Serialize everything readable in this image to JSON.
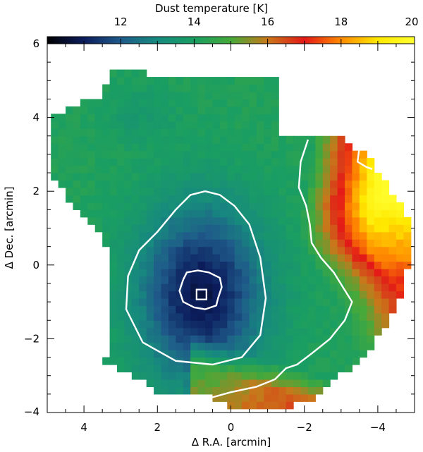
{
  "chart_data": {
    "type": "heatmap",
    "title": "",
    "colorbar": {
      "label": "Dust temperature [K]",
      "range": [
        10,
        20
      ],
      "ticks": [
        12,
        14,
        16,
        18,
        20
      ],
      "colormap": [
        "#000000",
        "#0c1d5c",
        "#1f5a8a",
        "#178a7e",
        "#1a9e62",
        "#46a93a",
        "#c8781a",
        "#e31818",
        "#ff8a00",
        "#ffe800",
        "#ffff30"
      ]
    },
    "xaxis": {
      "label": "Δ R.A. [arcmin]",
      "range": [
        5,
        -5
      ],
      "ticks": [
        4,
        2,
        0,
        -2,
        -4
      ],
      "tick_labels": [
        "4",
        "2",
        "0",
        "−2",
        "−4"
      ]
    },
    "yaxis": {
      "label": "Δ Dec. [arcmin]",
      "range": [
        -4,
        6
      ],
      "ticks": [
        -4,
        -2,
        0,
        2,
        4,
        6
      ],
      "tick_labels": [
        "−4",
        "−2",
        "0",
        "2",
        "4",
        "6"
      ]
    },
    "map": {
      "core_position": [
        0.8,
        -0.8
      ],
      "core_min_temperature": 10.8,
      "ridge_temperature": 14.2,
      "east_rim_temperature": 19.8,
      "south_rim_temperature": 16.5
    },
    "contours": [
      {
        "level": "inner",
        "points": [
          [
            1.3,
            -0.4
          ],
          [
            1.2,
            -0.2
          ],
          [
            0.9,
            -0.15
          ],
          [
            0.6,
            -0.2
          ],
          [
            0.3,
            -0.35
          ],
          [
            0.25,
            -0.6
          ],
          [
            0.35,
            -0.9
          ],
          [
            0.4,
            -1.1
          ],
          [
            0.7,
            -1.2
          ],
          [
            1.0,
            -1.15
          ],
          [
            1.3,
            -1.0
          ],
          [
            1.4,
            -0.7
          ],
          [
            1.3,
            -0.4
          ]
        ]
      },
      {
        "level": "middle",
        "points": [
          [
            0.7,
            2.0
          ],
          [
            0.3,
            1.9
          ],
          [
            -0.1,
            1.6
          ],
          [
            -0.5,
            1.1
          ],
          [
            -0.8,
            0.2
          ],
          [
            -0.95,
            -0.9
          ],
          [
            -0.8,
            -1.9
          ],
          [
            -0.3,
            -2.5
          ],
          [
            0.5,
            -2.7
          ],
          [
            1.5,
            -2.6
          ],
          [
            2.4,
            -2.1
          ],
          [
            2.85,
            -1.2
          ],
          [
            2.8,
            -0.3
          ],
          [
            2.5,
            0.4
          ],
          [
            2.0,
            0.9
          ],
          [
            1.5,
            1.5
          ],
          [
            1.1,
            1.9
          ],
          [
            0.7,
            2.0
          ]
        ]
      },
      {
        "level": "outer",
        "points": [
          [
            -2.1,
            3.4
          ],
          [
            -1.9,
            2.8
          ],
          [
            -1.85,
            2.1
          ],
          [
            -2.05,
            1.6
          ],
          [
            -2.15,
            1.1
          ],
          [
            -2.2,
            0.6
          ],
          [
            -2.45,
            0.2
          ],
          [
            -2.8,
            -0.2
          ],
          [
            -3.05,
            -0.6
          ],
          [
            -3.3,
            -1.0
          ],
          [
            -3.1,
            -1.5
          ],
          [
            -2.7,
            -2.0
          ],
          [
            -2.2,
            -2.4
          ],
          [
            -1.8,
            -2.7
          ],
          [
            -1.5,
            -2.8
          ],
          [
            -1.2,
            -3.1
          ],
          [
            -0.7,
            -3.3
          ],
          [
            0.0,
            -3.45
          ],
          [
            0.55,
            -3.6
          ]
        ]
      },
      {
        "level": "rim",
        "points": [
          [
            -3.5,
            3.2
          ],
          [
            -3.45,
            2.8
          ],
          [
            -3.7,
            2.65
          ],
          [
            -3.85,
            2.6
          ]
        ]
      }
    ],
    "markers": [
      {
        "shape": "square",
        "x": 0.8,
        "y": -0.8
      }
    ]
  }
}
